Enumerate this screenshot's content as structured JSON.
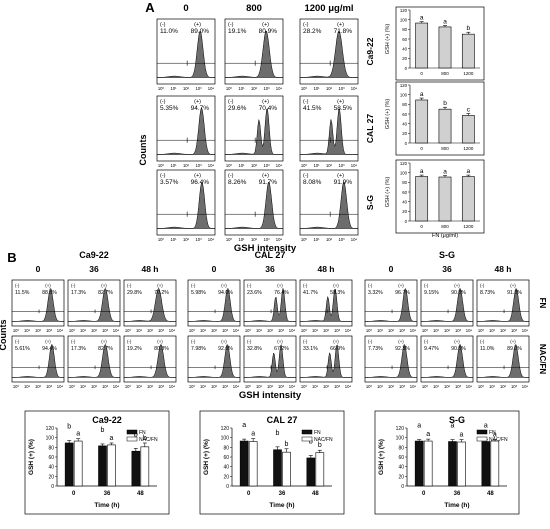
{
  "panels": {
    "A": "A",
    "B": "B"
  },
  "axis_text": {
    "counts": "Counts",
    "gsh_intensity": "GSH intensity",
    "flow_ticks": [
      "10⁰",
      "10¹",
      "10²",
      "10³",
      "10⁴"
    ]
  },
  "colors": {
    "hist_fill": "#6d6d6d",
    "bar_gray": "#d0d0d0",
    "bar_black": "#111111",
    "bar_white": "#ffffff"
  },
  "panel_a": {
    "conc_headers": [
      "0",
      "800",
      "1200 μg/ml"
    ],
    "row_labels": [
      "Ca9-22",
      "CAL 27",
      "S-G"
    ],
    "flow": [
      [
        {
          "neg": "11.0%",
          "pos": "89.0%"
        },
        {
          "neg": "19.1%",
          "pos": "80.9%"
        },
        {
          "neg": "28.2%",
          "pos": "71.8%"
        }
      ],
      [
        {
          "neg": "5.35%",
          "pos": "94.7%"
        },
        {
          "neg": "29.6%",
          "pos": "70.4%"
        },
        {
          "neg": "41.5%",
          "pos": "58.5%"
        }
      ],
      [
        {
          "neg": "3.57%",
          "pos": "96.4%"
        },
        {
          "neg": "8.26%",
          "pos": "91.7%"
        },
        {
          "neg": "8.08%",
          "pos": "91.9%"
        }
      ]
    ],
    "gate": {
      "neg": "(-)",
      "pos": "(+)"
    }
  },
  "panel_b": {
    "lines": [
      "Ca9-22",
      "CAL 27",
      "S-G"
    ],
    "time_headers": [
      "0",
      "36",
      "48 h"
    ],
    "row_labels": [
      "FN",
      "NAC/FN"
    ],
    "flow": [
      [
        [
          {
            "neg": "11.5%",
            "pos": "88.5%"
          },
          {
            "neg": "17.3%",
            "pos": "82.7%"
          },
          {
            "neg": "29.8%",
            "pos": "70.2%"
          }
        ],
        [
          {
            "neg": "5.61%",
            "pos": "94.4%"
          },
          {
            "neg": "17.3%",
            "pos": "82.7%"
          },
          {
            "neg": "19.2%",
            "pos": "80.8%"
          }
        ]
      ],
      [
        [
          {
            "neg": "5.98%",
            "pos": "94.0%"
          },
          {
            "neg": "23.6%",
            "pos": "76.4%"
          },
          {
            "neg": "41.7%",
            "pos": "58.3%"
          }
        ],
        [
          {
            "neg": "7.98%",
            "pos": "92.0%"
          },
          {
            "neg": "32.8%",
            "pos": "67.2%"
          },
          {
            "neg": "33.1%",
            "pos": "66.9%"
          }
        ]
      ],
      [
        [
          {
            "neg": "3.32%",
            "pos": "96.7%"
          },
          {
            "neg": "9.15%",
            "pos": "90.8%"
          },
          {
            "neg": "8.73%",
            "pos": "91.3%"
          }
        ],
        [
          {
            "neg": "7.73%",
            "pos": "92.3%"
          },
          {
            "neg": "9.47%",
            "pos": "90.5%"
          },
          {
            "neg": "11.0%",
            "pos": "89.0%"
          }
        ]
      ]
    ]
  },
  "chart_data": [
    {
      "type": "bar",
      "panel": "A",
      "title": "Ca9-22",
      "categories": [
        "0",
        "800",
        "1200"
      ],
      "values": [
        93,
        85,
        70
      ],
      "errors": [
        3,
        3,
        4
      ],
      "letters": [
        "a",
        "a",
        "b"
      ],
      "ylabel": "GSH (+) (%)",
      "xlabel": "",
      "ylim": [
        0,
        120
      ],
      "yticks": [
        0,
        20,
        40,
        60,
        80,
        100,
        120
      ]
    },
    {
      "type": "bar",
      "panel": "A",
      "title": "CAL 27",
      "categories": [
        "0",
        "800",
        "1200"
      ],
      "values": [
        89,
        70,
        57
      ],
      "errors": [
        4,
        4,
        4
      ],
      "letters": [
        "a",
        "b",
        "c"
      ],
      "ylabel": "GSH (+) (%)",
      "xlabel": "",
      "ylim": [
        0,
        120
      ],
      "yticks": [
        0,
        20,
        40,
        60,
        80,
        100,
        120
      ]
    },
    {
      "type": "bar",
      "panel": "A",
      "title": "S-G",
      "categories": [
        "0",
        "800",
        "1200"
      ],
      "values": [
        92,
        91,
        92
      ],
      "errors": [
        3,
        3,
        3
      ],
      "letters": [
        "a",
        "a",
        "a"
      ],
      "ylabel": "GSH (+) (%)",
      "xlabel": "FN (μg/ml)",
      "ylim": [
        0,
        120
      ],
      "yticks": [
        0,
        20,
        40,
        60,
        80,
        100,
        120
      ]
    },
    {
      "type": "bar",
      "panel": "B",
      "title": "Ca9-22",
      "categories": [
        "0",
        "36",
        "48"
      ],
      "series": [
        {
          "name": "FN",
          "values": [
            89,
            83,
            72
          ],
          "errors": [
            5,
            4,
            6
          ],
          "letters": [
            "b",
            "b",
            "b"
          ]
        },
        {
          "name": "NAC/FN",
          "values": [
            93,
            85,
            81
          ],
          "errors": [
            5,
            4,
            8
          ],
          "letters": [
            "a",
            "a",
            "b"
          ]
        }
      ],
      "ylabel": "GSH (+) (%)",
      "xlabel": "Time (h)",
      "ylim": [
        0,
        120
      ],
      "yticks": [
        0,
        20,
        40,
        60,
        80,
        100,
        120
      ]
    },
    {
      "type": "bar",
      "panel": "B",
      "title": "CAL 27",
      "categories": [
        "0",
        "36",
        "48"
      ],
      "series": [
        {
          "name": "FN",
          "values": [
            93,
            75,
            58
          ],
          "errors": [
            4,
            6,
            5
          ],
          "letters": [
            "a",
            "b",
            "b"
          ]
        },
        {
          "name": "NAC/FN",
          "values": [
            92,
            70,
            69
          ],
          "errors": [
            6,
            7,
            5
          ],
          "letters": [
            "a",
            "b",
            "b"
          ]
        }
      ],
      "ylabel": "GSH (+) (%)",
      "xlabel": "Time (h)",
      "ylim": [
        0,
        120
      ],
      "yticks": [
        0,
        20,
        40,
        60,
        80,
        100,
        120
      ]
    },
    {
      "type": "bar",
      "panel": "B",
      "title": "S-G",
      "categories": [
        "0",
        "36",
        "48"
      ],
      "series": [
        {
          "name": "FN",
          "values": [
            93,
            92,
            92
          ],
          "errors": [
            3,
            4,
            4
          ],
          "letters": [
            "a",
            "a",
            "a"
          ]
        },
        {
          "name": "NAC/FN",
          "values": [
            93,
            91,
            93
          ],
          "errors": [
            4,
            5,
            3
          ],
          "letters": [
            "a",
            "a",
            "a"
          ]
        }
      ],
      "ylabel": "GSH (+) (%)",
      "xlabel": "Time (h)",
      "ylim": [
        0,
        120
      ],
      "yticks": [
        0,
        20,
        40,
        60,
        80,
        100,
        120
      ]
    }
  ]
}
